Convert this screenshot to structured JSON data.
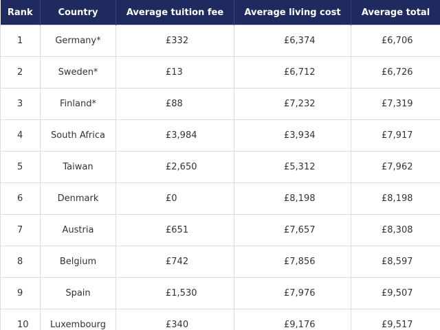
{
  "table": {
    "columns": [
      "Rank",
      "Country",
      "Average tuition fee",
      "Average living cost",
      "Average total"
    ],
    "rows": [
      [
        "1",
        "Germany*",
        "£332",
        "£6,374",
        "£6,706"
      ],
      [
        "2",
        "Sweden*",
        "£13",
        "£6,712",
        "£6,726"
      ],
      [
        "3",
        "Finland*",
        "£88",
        "£7,232",
        "£7,319"
      ],
      [
        "4",
        "South Africa",
        "£3,984",
        "£3,934",
        "£7,917"
      ],
      [
        "5",
        "Taiwan",
        "£2,650",
        "£5,312",
        "£7,962"
      ],
      [
        "6",
        "Denmark",
        "£0",
        "£8,198",
        "£8,198"
      ],
      [
        "7",
        "Austria",
        "£651",
        "£7,657",
        "£8,308"
      ],
      [
        "8",
        "Belgium",
        "£742",
        "£7,856",
        "£8,597"
      ],
      [
        "9",
        "Spain",
        "£1,530",
        "£7,976",
        "£9,507"
      ],
      [
        "10",
        "Luxembourg",
        "£340",
        "£9,176",
        "£9,517"
      ]
    ]
  }
}
